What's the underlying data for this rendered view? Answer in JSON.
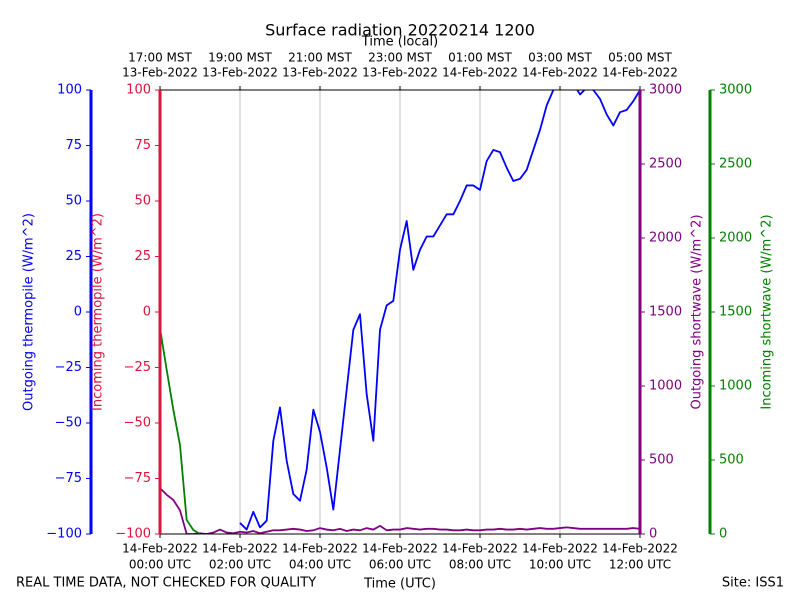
{
  "chart_data": {
    "type": "line",
    "title": "Surface radiation 20220214 1200",
    "xlabel": "Time (UTC)",
    "x2label": "Time (local)",
    "footer_left": "REAL TIME DATA, NOT CHECKED FOR QUALITY",
    "footer_right": "Site: ISS1",
    "grid": true,
    "xlim": [
      "14-Feb-2022 00:00",
      "14-Feb-2022 12:00"
    ],
    "xticks": [
      {
        "value": "14-Feb-2022 00:00",
        "label": [
          "14-Feb-2022",
          "00:00 UTC"
        ]
      },
      {
        "value": "14-Feb-2022 02:00",
        "label": [
          "14-Feb-2022",
          "02:00 UTC"
        ]
      },
      {
        "value": "14-Feb-2022 04:00",
        "label": [
          "14-Feb-2022",
          "04:00 UTC"
        ]
      },
      {
        "value": "14-Feb-2022 06:00",
        "label": [
          "14-Feb-2022",
          "06:00 UTC"
        ]
      },
      {
        "value": "14-Feb-2022 08:00",
        "label": [
          "14-Feb-2022",
          "08:00 UTC"
        ]
      },
      {
        "value": "14-Feb-2022 10:00",
        "label": [
          "14-Feb-2022",
          "10:00 UTC"
        ]
      },
      {
        "value": "14-Feb-2022 12:00",
        "label": [
          "14-Feb-2022",
          "12:00 UTC"
        ]
      }
    ],
    "x2ticks": [
      {
        "value": "14-Feb-2022 00:00",
        "label": [
          "17:00 MST",
          "13-Feb-2022"
        ]
      },
      {
        "value": "14-Feb-2022 02:00",
        "label": [
          "19:00 MST",
          "13-Feb-2022"
        ]
      },
      {
        "value": "14-Feb-2022 04:00",
        "label": [
          "21:00 MST",
          "13-Feb-2022"
        ]
      },
      {
        "value": "14-Feb-2022 06:00",
        "label": [
          "23:00 MST",
          "13-Feb-2022"
        ]
      },
      {
        "value": "14-Feb-2022 08:00",
        "label": [
          "01:00 MST",
          "14-Feb-2022"
        ]
      },
      {
        "value": "14-Feb-2022 10:00",
        "label": [
          "03:00 MST",
          "14-Feb-2022"
        ]
      },
      {
        "value": "14-Feb-2022 12:00",
        "label": [
          "05:00 MST",
          "14-Feb-2022"
        ]
      }
    ],
    "y_axes": [
      {
        "label": "Outgoing thermopile (W/m^2)",
        "color": "#0000ff",
        "side": "left",
        "ylim": [
          -100,
          100
        ],
        "yticks": [
          {
            "value": -100,
            "label": "−100"
          },
          {
            "value": -75,
            "label": "−75"
          },
          {
            "value": -50,
            "label": "−50"
          },
          {
            "value": -25,
            "label": "−25"
          },
          0,
          25,
          50,
          75,
          100
        ]
      },
      {
        "label": "Incoming thermopile (W/m^2)",
        "color": "#dc143c",
        "side": "left",
        "ylim": [
          -100,
          100
        ],
        "yticks": [
          {
            "value": -100,
            "label": "−100"
          },
          {
            "value": -75,
            "label": "−75"
          },
          {
            "value": -50,
            "label": "−50"
          },
          {
            "value": -25,
            "label": "−25"
          },
          0,
          25,
          50,
          75,
          100
        ]
      },
      {
        "label": "Outgoing shortwave (W/m^2)",
        "color": "#800080",
        "side": "right",
        "ylim": [
          0,
          3000
        ],
        "yticks": [
          0,
          500,
          1000,
          1500,
          2000,
          2500,
          3000
        ]
      },
      {
        "label": "Incoming shortwave (W/m^2)",
        "color": "#008000",
        "side": "right",
        "ylim": [
          0,
          3000
        ],
        "yticks": [
          0,
          500,
          1000,
          1500,
          2000,
          2500,
          3000
        ]
      }
    ],
    "x": [
      "14-Feb-2022 00:00",
      "14-Feb-2022 00:10",
      "14-Feb-2022 00:20",
      "14-Feb-2022 00:30",
      "14-Feb-2022 00:40",
      "14-Feb-2022 00:50",
      "14-Feb-2022 01:00",
      "14-Feb-2022 01:10",
      "14-Feb-2022 01:20",
      "14-Feb-2022 01:30",
      "14-Feb-2022 01:40",
      "14-Feb-2022 01:50",
      "14-Feb-2022 02:00",
      "14-Feb-2022 02:10",
      "14-Feb-2022 02:20",
      "14-Feb-2022 02:30",
      "14-Feb-2022 02:40",
      "14-Feb-2022 02:50",
      "14-Feb-2022 03:00",
      "14-Feb-2022 03:10",
      "14-Feb-2022 03:20",
      "14-Feb-2022 03:30",
      "14-Feb-2022 03:40",
      "14-Feb-2022 03:50",
      "14-Feb-2022 04:00",
      "14-Feb-2022 04:10",
      "14-Feb-2022 04:20",
      "14-Feb-2022 04:30",
      "14-Feb-2022 04:40",
      "14-Feb-2022 04:50",
      "14-Feb-2022 05:00",
      "14-Feb-2022 05:10",
      "14-Feb-2022 05:20",
      "14-Feb-2022 05:30",
      "14-Feb-2022 05:40",
      "14-Feb-2022 05:50",
      "14-Feb-2022 06:00",
      "14-Feb-2022 06:10",
      "14-Feb-2022 06:20",
      "14-Feb-2022 06:30",
      "14-Feb-2022 06:40",
      "14-Feb-2022 06:50",
      "14-Feb-2022 07:00",
      "14-Feb-2022 07:10",
      "14-Feb-2022 07:20",
      "14-Feb-2022 07:30",
      "14-Feb-2022 07:40",
      "14-Feb-2022 07:50",
      "14-Feb-2022 08:00",
      "14-Feb-2022 08:10",
      "14-Feb-2022 08:20",
      "14-Feb-2022 08:30",
      "14-Feb-2022 08:40",
      "14-Feb-2022 08:50",
      "14-Feb-2022 09:00",
      "14-Feb-2022 09:10",
      "14-Feb-2022 09:20",
      "14-Feb-2022 09:30",
      "14-Feb-2022 09:40",
      "14-Feb-2022 09:50",
      "14-Feb-2022 10:00",
      "14-Feb-2022 10:10",
      "14-Feb-2022 10:20",
      "14-Feb-2022 10:30",
      "14-Feb-2022 10:40",
      "14-Feb-2022 10:50",
      "14-Feb-2022 11:00",
      "14-Feb-2022 11:10",
      "14-Feb-2022 11:20",
      "14-Feb-2022 11:30",
      "14-Feb-2022 11:40",
      "14-Feb-2022 11:50",
      "14-Feb-2022 12:00"
    ],
    "series": [
      {
        "name": "Outgoing thermopile",
        "color": "#0000ff",
        "axis": 0,
        "values": [
          null,
          null,
          null,
          null,
          null,
          null,
          null,
          null,
          null,
          null,
          null,
          null,
          -95,
          -98,
          -90,
          -97,
          -94,
          -58,
          -43,
          -67,
          -82,
          -85,
          -71,
          -44,
          -54,
          -70,
          -89,
          -62,
          -35,
          -8,
          -1,
          -37,
          -58,
          -8,
          3,
          5,
          28,
          41,
          19,
          28,
          34,
          34,
          39,
          44,
          44,
          50,
          57,
          57,
          55,
          68,
          73,
          72,
          65,
          59,
          60,
          64,
          73,
          82,
          93,
          100,
          101,
          103,
          103,
          98,
          101,
          100,
          96,
          89,
          84,
          90,
          91,
          95,
          100
        ]
      },
      {
        "name": "Outgoing shortwave",
        "color": "#800080",
        "axis": 2,
        "values": [
          310,
          265,
          230,
          160,
          0,
          0,
          5,
          0,
          10,
          30,
          10,
          5,
          15,
          10,
          20,
          5,
          15,
          25,
          25,
          30,
          35,
          30,
          20,
          25,
          40,
          30,
          25,
          35,
          20,
          30,
          25,
          40,
          30,
          55,
          25,
          30,
          30,
          40,
          35,
          30,
          35,
          35,
          30,
          30,
          25,
          25,
          30,
          25,
          25,
          30,
          30,
          35,
          30,
          30,
          35,
          30,
          35,
          40,
          35,
          35,
          40,
          45,
          40,
          35,
          35,
          35,
          35,
          35,
          35,
          35,
          35,
          40,
          35
        ]
      },
      {
        "name": "Incoming shortwave",
        "color": "#008000",
        "axis": 3,
        "values": [
          1390,
          1110,
          840,
          600,
          95,
          27,
          0,
          null,
          null,
          null,
          null,
          null,
          null,
          null,
          null,
          null,
          null,
          null,
          null,
          null,
          null,
          null,
          null,
          null,
          null,
          null,
          null,
          null,
          null,
          null,
          null,
          null,
          null,
          null,
          null,
          null,
          null,
          null,
          null,
          null,
          null,
          null,
          null,
          null,
          null,
          null,
          null,
          null,
          null,
          null,
          null,
          null,
          null,
          null,
          null,
          null,
          null,
          null,
          null,
          null,
          null,
          null,
          null,
          null,
          null,
          null,
          null,
          null,
          null,
          null,
          null,
          null,
          null
        ]
      }
    ]
  }
}
